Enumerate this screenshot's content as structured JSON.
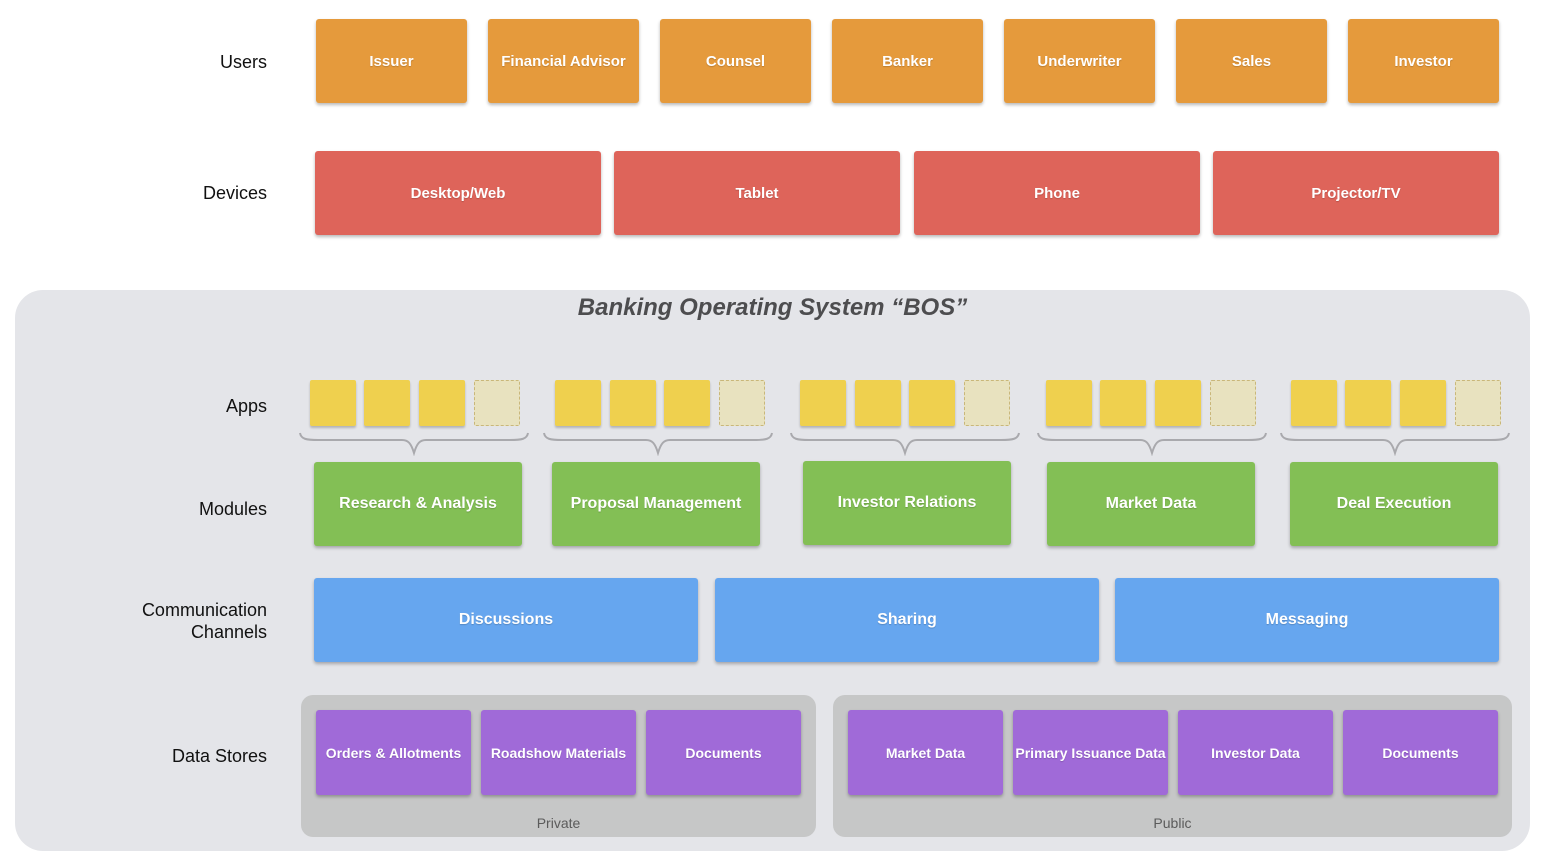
{
  "row_labels": {
    "users": "Users",
    "devices": "Devices",
    "apps": "Apps",
    "modules": "Modules",
    "channels_line1": "Communication",
    "channels_line2": "Channels",
    "data_stores": "Data Stores"
  },
  "users": [
    "Issuer",
    "Financial Advisor",
    "Counsel",
    "Banker",
    "Underwriter",
    "Sales",
    "Investor"
  ],
  "devices": [
    "Desktop/Web",
    "Tablet",
    "Phone",
    "Projector/TV"
  ],
  "bos_title": "Banking Operating System “BOS”",
  "modules": [
    "Research & Analysis",
    "Proposal Management",
    "Investor Relations",
    "Market Data",
    "Deal Execution"
  ],
  "channels": [
    "Discussions",
    "Sharing",
    "Messaging"
  ],
  "data_stores": {
    "private": {
      "label": "Private",
      "items": [
        "Orders & Allotments",
        "Roadshow Materials",
        "Documents"
      ]
    },
    "public": {
      "label": "Public",
      "items": [
        "Market Data",
        "Primary Issuance Data",
        "Investor Data",
        "Documents"
      ]
    }
  },
  "colors": {
    "users": "#e59a3c",
    "devices": "#de645a",
    "apps": "#efd04e",
    "app_placeholder": "#e8e2bf",
    "modules": "#83bf55",
    "channels": "#66a6ef",
    "data_stores": "#a06ad8",
    "bos_background": "#e4e5e9",
    "store_group_background": "#c6c7c7"
  }
}
